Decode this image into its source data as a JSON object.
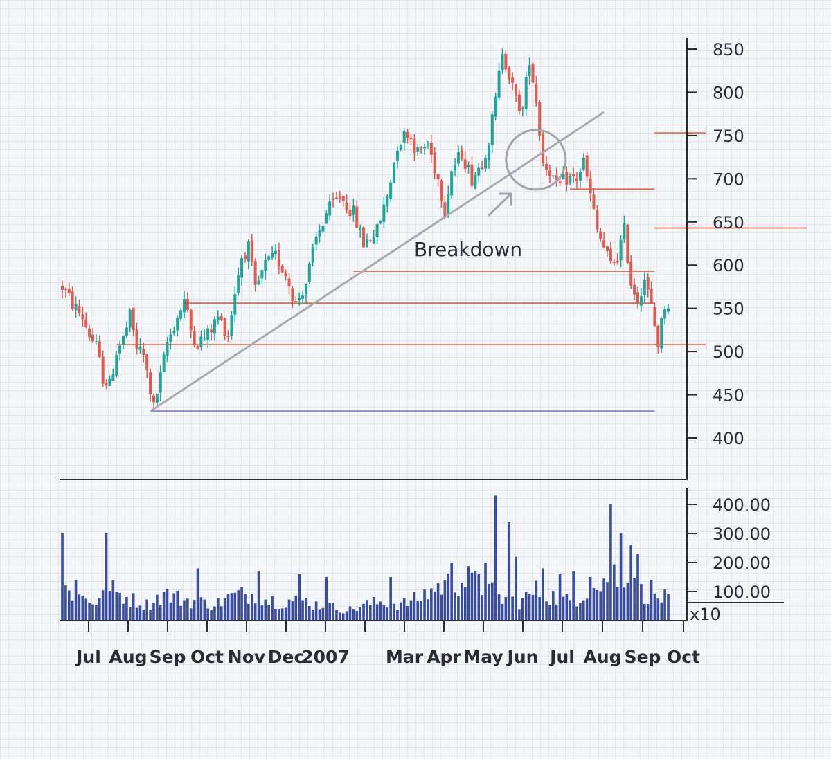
{
  "chart_data": {
    "type": "candlestick",
    "title": "",
    "price_axis": {
      "ticks": [
        400,
        450,
        500,
        550,
        600,
        650,
        700,
        750,
        800,
        850
      ],
      "ylim": [
        340,
        870
      ]
    },
    "volume_axis": {
      "ticks": [
        "100.00",
        "200.00",
        "300.00",
        "400.00"
      ],
      "ylim": [
        0,
        450
      ],
      "multiplier_label": "x10"
    },
    "x_labels": [
      "Jul",
      "Aug",
      "Sep",
      "Oct",
      "Nov",
      "Dec",
      "2007",
      "Mar",
      "Apr",
      "May",
      "Jun",
      "Jul",
      "Aug",
      "Sep",
      "Oct"
    ],
    "colors": {
      "up": "#1fa59a",
      "down": "#e05a4e",
      "volume": "#3a4c9e",
      "support": "#e0694f",
      "baseline": "#7a86d6",
      "trendline": "#a9a9b2",
      "axis": "#2b2b33"
    },
    "support_levels": [
      {
        "price": 508,
        "x_start": 16,
        "x_end": 190
      },
      {
        "price": 556,
        "x_start": 36,
        "x_end": 175
      },
      {
        "price": 593,
        "x_start": 86,
        "x_end": 175
      },
      {
        "price": 643,
        "x_start": 220,
        "x_end": 175
      },
      {
        "price": 688,
        "x_start": 150,
        "x_end": 175
      },
      {
        "price": 753,
        "x_start": 190,
        "x_end": 175
      }
    ],
    "baseline_level": {
      "price": 431,
      "x_start": 26,
      "x_end": 175
    },
    "trendline": {
      "from": {
        "x": 26,
        "price": 431
      },
      "to": {
        "x": 160,
        "price": 777
      }
    },
    "annotation": {
      "text": "Breakdown",
      "circle_at": {
        "x": 140,
        "price": 722
      }
    },
    "price_keypoints": [
      [
        0,
        575
      ],
      [
        3,
        555
      ],
      [
        6,
        540
      ],
      [
        8,
        520
      ],
      [
        10,
        505
      ],
      [
        12,
        470
      ],
      [
        14,
        460
      ],
      [
        16,
        500
      ],
      [
        18,
        515
      ],
      [
        20,
        540
      ],
      [
        22,
        505
      ],
      [
        24,
        495
      ],
      [
        27,
        435
      ],
      [
        29,
        470
      ],
      [
        31,
        510
      ],
      [
        34,
        540
      ],
      [
        36,
        560
      ],
      [
        38,
        525
      ],
      [
        40,
        510
      ],
      [
        43,
        520
      ],
      [
        46,
        540
      ],
      [
        49,
        520
      ],
      [
        51,
        570
      ],
      [
        53,
        610
      ],
      [
        55,
        620
      ],
      [
        57,
        570
      ],
      [
        60,
        600
      ],
      [
        63,
        610
      ],
      [
        66,
        590
      ],
      [
        69,
        555
      ],
      [
        72,
        580
      ],
      [
        75,
        630
      ],
      [
        78,
        660
      ],
      [
        82,
        680
      ],
      [
        86,
        660
      ],
      [
        89,
        625
      ],
      [
        93,
        640
      ],
      [
        96,
        680
      ],
      [
        99,
        740
      ],
      [
        102,
        755
      ],
      [
        105,
        730
      ],
      [
        108,
        740
      ],
      [
        111,
        700
      ],
      [
        113,
        665
      ],
      [
        115,
        710
      ],
      [
        118,
        730
      ],
      [
        121,
        700
      ],
      [
        124,
        720
      ],
      [
        126,
        745
      ],
      [
        128,
        790
      ],
      [
        130,
        850
      ],
      [
        132,
        820
      ],
      [
        134,
        790
      ],
      [
        136,
        780
      ],
      [
        138,
        840
      ],
      [
        140,
        790
      ],
      [
        142,
        720
      ],
      [
        144,
        710
      ],
      [
        146,
        690
      ],
      [
        149,
        700
      ],
      [
        152,
        700
      ],
      [
        154,
        720
      ],
      [
        156,
        680
      ],
      [
        158,
        640
      ],
      [
        160,
        620
      ],
      [
        162,
        600
      ],
      [
        164,
        610
      ],
      [
        166,
        640
      ],
      [
        168,
        580
      ],
      [
        170,
        560
      ],
      [
        172,
        585
      ],
      [
        174,
        550
      ],
      [
        176,
        510
      ],
      [
        178,
        555
      ]
    ],
    "volume_keypoints": [
      [
        0,
        120
      ],
      [
        5,
        90
      ],
      [
        10,
        70
      ],
      [
        15,
        110
      ],
      [
        20,
        80
      ],
      [
        25,
        60
      ],
      [
        30,
        100
      ],
      [
        35,
        80
      ],
      [
        40,
        70
      ],
      [
        45,
        60
      ],
      [
        50,
        90
      ],
      [
        55,
        100
      ],
      [
        60,
        80
      ],
      [
        65,
        70
      ],
      [
        70,
        80
      ],
      [
        75,
        60
      ],
      [
        80,
        50
      ],
      [
        85,
        40
      ],
      [
        90,
        60
      ],
      [
        95,
        70
      ],
      [
        100,
        60
      ],
      [
        105,
        80
      ],
      [
        110,
        120
      ],
      [
        115,
        140
      ],
      [
        120,
        150
      ],
      [
        125,
        120
      ],
      [
        130,
        80
      ],
      [
        135,
        70
      ],
      [
        140,
        110
      ],
      [
        145,
        90
      ],
      [
        150,
        70
      ],
      [
        155,
        110
      ],
      [
        160,
        130
      ],
      [
        162,
        220
      ],
      [
        164,
        170
      ],
      [
        166,
        150
      ],
      [
        170,
        110
      ],
      [
        175,
        90
      ],
      [
        179,
        80
      ]
    ],
    "volume_spikes": [
      [
        0,
        300
      ],
      [
        4,
        140
      ],
      [
        13,
        300
      ],
      [
        40,
        180
      ],
      [
        58,
        170
      ],
      [
        70,
        160
      ],
      [
        78,
        150
      ],
      [
        97,
        150
      ],
      [
        115,
        200
      ],
      [
        123,
        160
      ],
      [
        125,
        200
      ],
      [
        128,
        430
      ],
      [
        132,
        340
      ],
      [
        134,
        220
      ],
      [
        142,
        180
      ],
      [
        147,
        160
      ],
      [
        151,
        170
      ],
      [
        156,
        150
      ],
      [
        162,
        400
      ],
      [
        165,
        300
      ],
      [
        168,
        260
      ],
      [
        170,
        230
      ],
      [
        174,
        140
      ]
    ],
    "n_candles": 180
  }
}
